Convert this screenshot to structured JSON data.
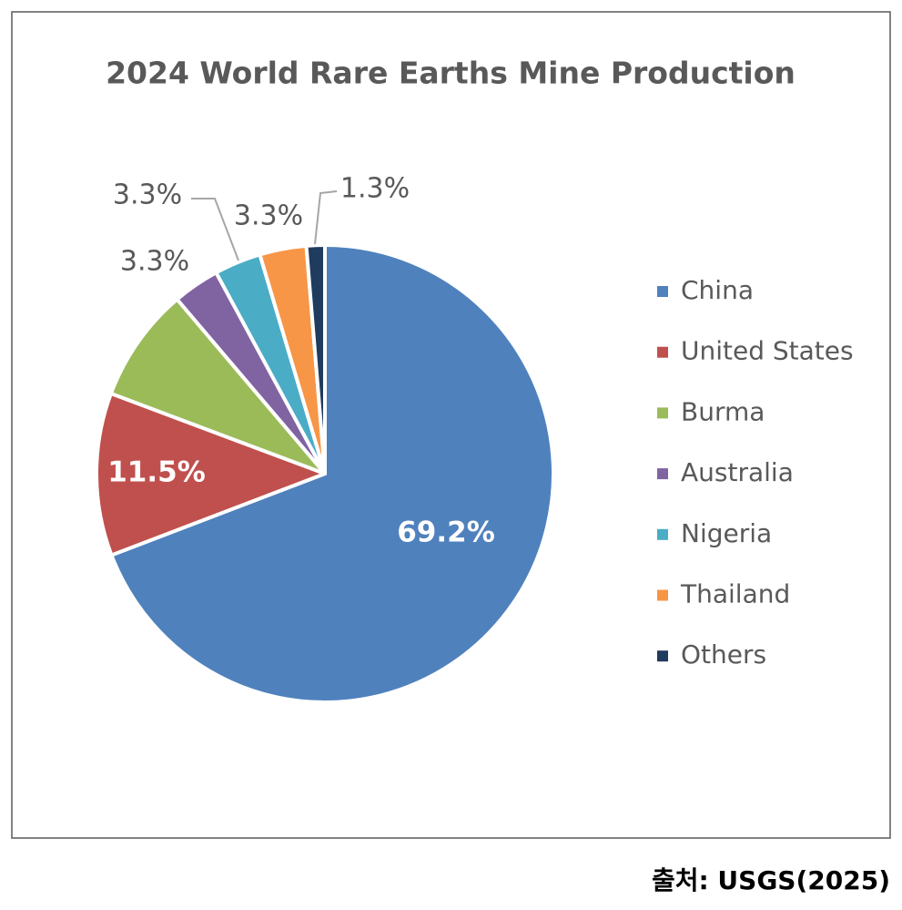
{
  "chart_data": {
    "type": "pie",
    "title": "2024 World Rare Earths Mine Production",
    "categories": [
      "China",
      "United States",
      "Burma",
      "Australia",
      "Nigeria",
      "Thailand",
      "Others"
    ],
    "values": [
      69.2,
      11.5,
      8.1,
      3.3,
      3.3,
      3.3,
      1.3
    ],
    "value_labels": [
      "69.2%",
      "11.5%",
      null,
      "3.3%",
      "3.3%",
      "3.3%",
      "1.3%"
    ],
    "colors": [
      "#4f81bd",
      "#c0504d",
      "#9bbb59",
      "#8064a2",
      "#4bacc6",
      "#f79646",
      "#1f3b5e"
    ],
    "legend": "right"
  },
  "source": "출처: USGS(2025)"
}
